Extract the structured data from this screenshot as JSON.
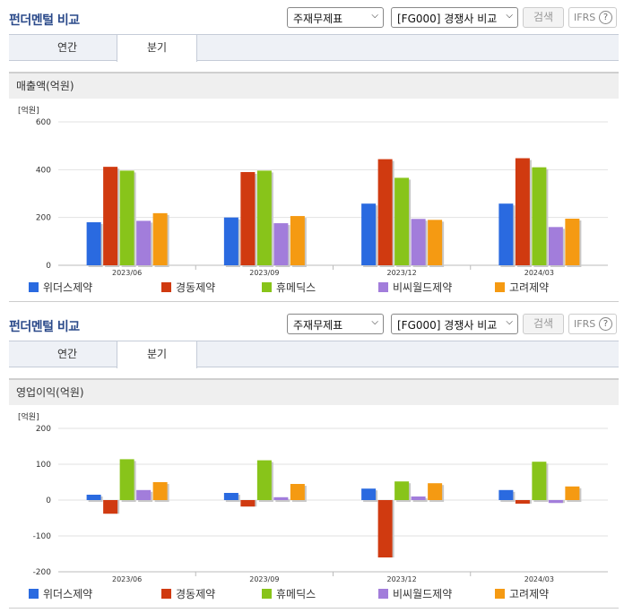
{
  "sections": [
    {
      "title": "펀더멘털 비교",
      "select1": "주재무제표",
      "select2": "[FG000] 경쟁사 비교",
      "search_label": "검색",
      "ifrs_label": "IFRS",
      "ifrs_help": "?",
      "tabs": [
        {
          "label": "연간",
          "active": false
        },
        {
          "label": "분기",
          "active": true
        }
      ],
      "subheader": "매출액(억원)"
    },
    {
      "title": "펀더멘털 비교",
      "select1": "주재무제표",
      "select2": "[FG000] 경쟁사 비교",
      "search_label": "검색",
      "ifrs_label": "IFRS",
      "ifrs_help": "?",
      "tabs": [
        {
          "label": "연간",
          "active": false
        },
        {
          "label": "분기",
          "active": true
        }
      ],
      "subheader": "영업이익(억원)"
    }
  ],
  "colors": [
    "#2a6ae0",
    "#d03a10",
    "#88c41a",
    "#a27ddb",
    "#f59a12"
  ],
  "chart_data": [
    {
      "type": "bar",
      "title": "매출액(억원)",
      "ylabel": "[억원]",
      "categories": [
        "2023/06",
        "2023/09",
        "2023/12",
        "2024/03"
      ],
      "ylim": [
        0,
        600
      ],
      "yticks": [
        0,
        200,
        400,
        600
      ],
      "legend_position": "bottom",
      "series": [
        {
          "name": "위더스제약",
          "values": [
            180,
            200,
            258,
            258
          ]
        },
        {
          "name": "경동제약",
          "values": [
            412,
            390,
            444,
            448
          ]
        },
        {
          "name": "휴메딕스",
          "values": [
            396,
            396,
            366,
            410
          ]
        },
        {
          "name": "비씨월드제약",
          "values": [
            186,
            176,
            194,
            160
          ]
        },
        {
          "name": "고려제약",
          "values": [
            218,
            206,
            190,
            195
          ]
        }
      ]
    },
    {
      "type": "bar",
      "title": "영업이익(억원)",
      "ylabel": "[억원]",
      "categories": [
        "2023/06",
        "2023/09",
        "2023/12",
        "2024/03"
      ],
      "ylim": [
        -200,
        200
      ],
      "yticks": [
        -200,
        -100,
        0,
        100,
        200
      ],
      "legend_position": "bottom",
      "series": [
        {
          "name": "위더스제약",
          "values": [
            15,
            20,
            32,
            28
          ]
        },
        {
          "name": "경동제약",
          "values": [
            -38,
            -18,
            -160,
            -10
          ]
        },
        {
          "name": "휴메딕스",
          "values": [
            114,
            111,
            52,
            107
          ]
        },
        {
          "name": "비씨월드제약",
          "values": [
            28,
            8,
            10,
            -8
          ]
        },
        {
          "name": "고려제약",
          "values": [
            50,
            45,
            47,
            38
          ]
        }
      ]
    }
  ]
}
